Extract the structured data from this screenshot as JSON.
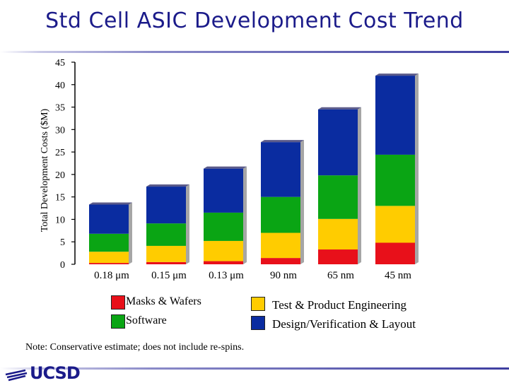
{
  "title": "Std Cell ASIC Development Cost Trend",
  "note": "Note: Conservative estimate; does not include re-spins.",
  "logo": {
    "text": "UCSD",
    "icon": "trident-icon"
  },
  "colors": {
    "masks": "#e8101a",
    "test": "#ffcc00",
    "software": "#0aa514",
    "design": "#0a2ca0",
    "title": "#1b1b8a"
  },
  "chart_data": {
    "type": "bar",
    "stacked": true,
    "title": "Std Cell ASIC Development Cost Trend",
    "xlabel": "",
    "ylabel": "Total Development Costs ($M)",
    "ylim": [
      0,
      45
    ],
    "yticks": [
      0,
      5,
      10,
      15,
      20,
      25,
      30,
      35,
      40,
      45
    ],
    "grid": false,
    "legend_position": "bottom",
    "categories": [
      "0.18 μm",
      "0.15 μm",
      "0.13 μm",
      "90 nm",
      "65 nm",
      "45 nm"
    ],
    "series": [
      {
        "name": "Masks & Wafers",
        "color": "#e8101a",
        "values": [
          0.3,
          0.5,
          0.7,
          1.4,
          3.3,
          4.8
        ]
      },
      {
        "name": "Test & Product Engineering",
        "color": "#ffcc00",
        "values": [
          2.5,
          3.6,
          4.5,
          5.6,
          6.8,
          8.2
        ]
      },
      {
        "name": "Software",
        "color": "#0aa514",
        "values": [
          4.0,
          5.0,
          6.3,
          8.0,
          9.7,
          11.4
        ]
      },
      {
        "name": "Design/Verification & Layout",
        "color": "#0a2ca0",
        "values": [
          6.5,
          8.2,
          9.8,
          12.2,
          14.7,
          17.6
        ]
      }
    ]
  }
}
